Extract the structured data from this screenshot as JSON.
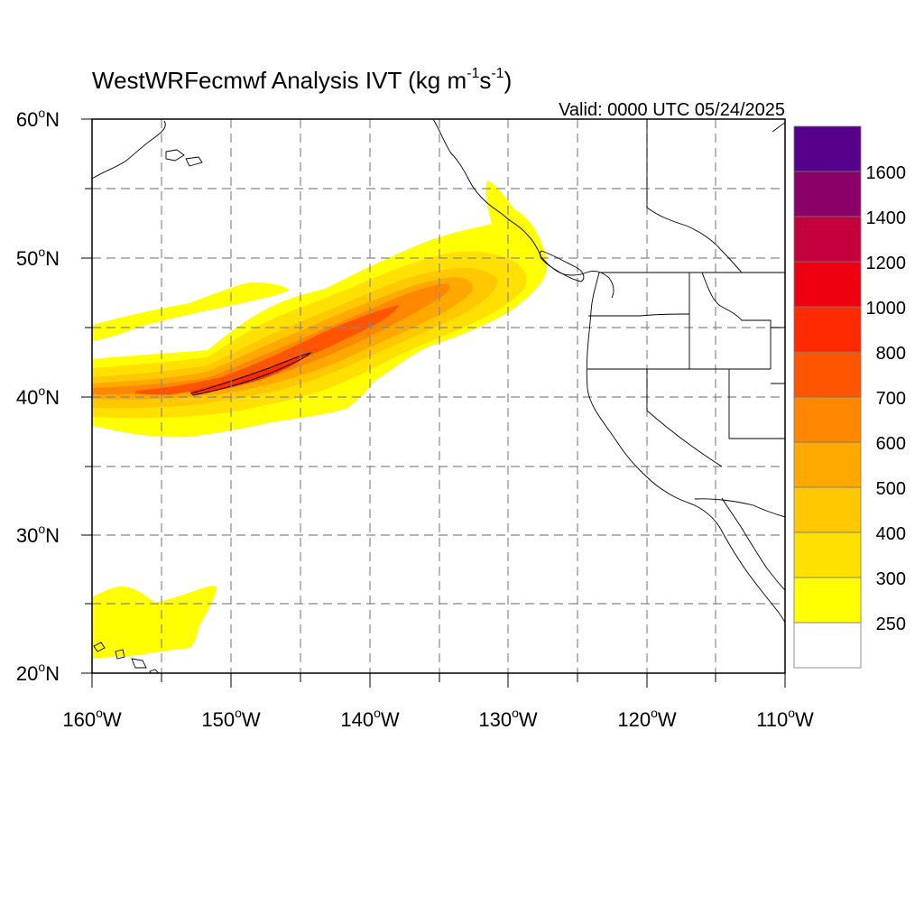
{
  "title": {
    "main": "WestWRFecmwf Analysis IVT (kg m",
    "sup1": "-1",
    "mid": "s",
    "sup2": "-1",
    "close": ")"
  },
  "valid_label": "Valid: 0000 UTC 05/24/2025",
  "lat_labels": [
    {
      "deg": "60",
      "sup": "o",
      "hem": "N"
    },
    {
      "deg": "50",
      "sup": "o",
      "hem": "N"
    },
    {
      "deg": "40",
      "sup": "o",
      "hem": "N"
    },
    {
      "deg": "30",
      "sup": "o",
      "hem": "N"
    },
    {
      "deg": "20",
      "sup": "o",
      "hem": "N"
    }
  ],
  "lon_labels": [
    {
      "deg": "160",
      "sup": "o",
      "hem": "W"
    },
    {
      "deg": "150",
      "sup": "o",
      "hem": "W"
    },
    {
      "deg": "140",
      "sup": "o",
      "hem": "W"
    },
    {
      "deg": "130",
      "sup": "o",
      "hem": "W"
    },
    {
      "deg": "120",
      "sup": "o",
      "hem": "W"
    },
    {
      "deg": "110",
      "sup": "o",
      "hem": "W"
    }
  ],
  "colorbar": {
    "labels": [
      "250",
      "300",
      "400",
      "500",
      "600",
      "700",
      "800",
      "1000",
      "1200",
      "1400",
      "1600"
    ],
    "colors": [
      "#ffffff",
      "#ffff00",
      "#ffe000",
      "#ffc800",
      "#ffa800",
      "#ff8800",
      "#ff5500",
      "#ff2a00",
      "#ee0010",
      "#c4003c",
      "#8a0068",
      "#56008c"
    ]
  },
  "map_extent": {
    "lon_min": -160,
    "lon_max": -110,
    "lat_min": 20,
    "lat_max": 60
  }
}
